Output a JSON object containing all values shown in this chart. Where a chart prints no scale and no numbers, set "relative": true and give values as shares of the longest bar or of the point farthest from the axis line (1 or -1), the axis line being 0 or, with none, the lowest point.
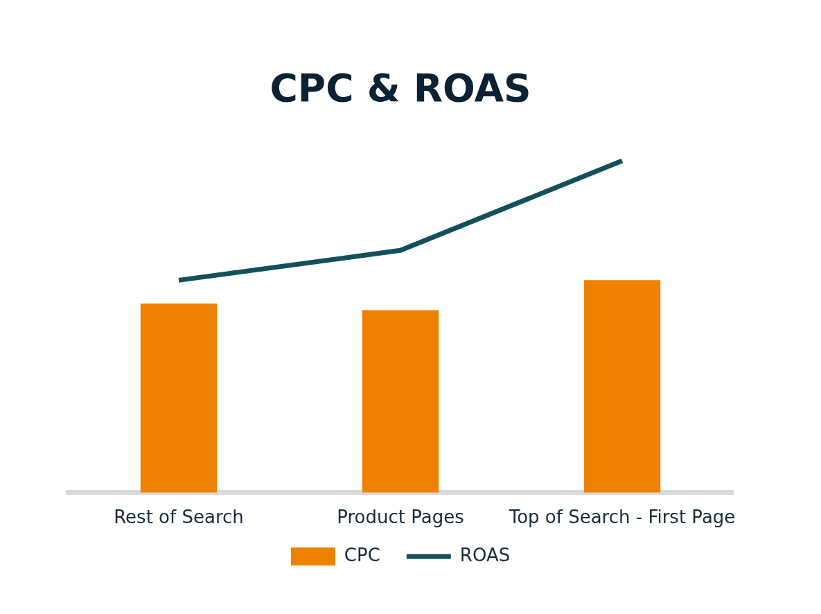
{
  "chart_data": {
    "type": "bar",
    "title": "CPC & ROAS",
    "categories": [
      "Rest of Search",
      "Product Pages",
      "Top of Search - First Page"
    ],
    "relative": true,
    "legend": "bottom",
    "marker": "none",
    "series": [
      {
        "name": "CPC",
        "color": "#ee8200",
        "values": [
          0.57,
          0.55,
          0.64
        ]
      },
      {
        "name": "ROAS",
        "type": "line",
        "color": "#13505b",
        "values": [
          0.64,
          0.73,
          1
        ]
      }
    ]
  }
}
